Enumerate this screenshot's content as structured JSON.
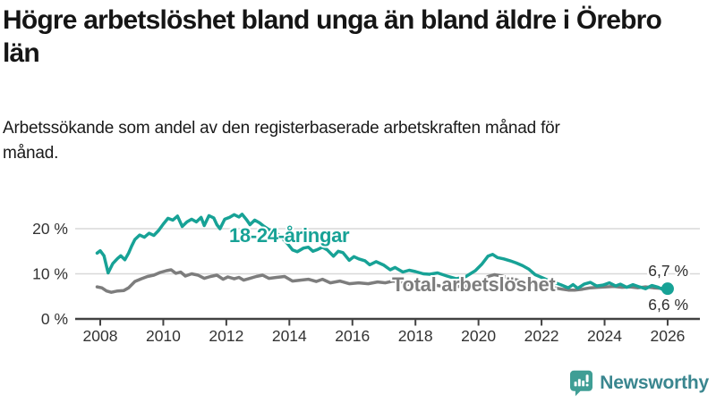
{
  "title": "Högre arbetslöshet bland unga än bland äldre i Örebro län",
  "subtitle": "Arbetssökande som andel av den registerbaserade arbetskraften månad för månad.",
  "logo": {
    "name": "Newsworthy",
    "icon": "newsworthy-speech-bubble-bar-chart-icon",
    "icon_color": "#3f9e95",
    "text_color": "#3a868f"
  },
  "colors": {
    "youth_line": "#17a296",
    "total_line": "#7d7d7d",
    "gridline": "#d8d8d8",
    "axis": "#424242",
    "tick_label": "#333333",
    "end_label": "#2e2e2e"
  },
  "chart_data": {
    "type": "line",
    "x_axis": {
      "unit": "year",
      "tick_values": [
        2008,
        2010,
        2012,
        2014,
        2016,
        2018,
        2020,
        2022,
        2024,
        2026
      ],
      "tick_labels": [
        "2008",
        "2010",
        "2012",
        "2014",
        "2016",
        "2018",
        "2020",
        "2022",
        "2024",
        "2026"
      ],
      "range": [
        2007.2,
        2027.0
      ]
    },
    "y_axis": {
      "tick_values": [
        0,
        10,
        20
      ],
      "tick_labels": [
        "0 %",
        "10 %",
        "20 %"
      ],
      "range": [
        0,
        25
      ],
      "grid": "horizontal"
    },
    "legend_position": "inline-labels",
    "series": [
      {
        "name": "18-24-åringar",
        "color": "#17a296",
        "end_value_label": "6,7 %",
        "end_dot": true,
        "points": [
          [
            2007.9,
            14.6
          ],
          [
            2008.0,
            15.1
          ],
          [
            2008.12,
            14.0
          ],
          [
            2008.25,
            10.2
          ],
          [
            2008.4,
            12.3
          ],
          [
            2008.55,
            13.4
          ],
          [
            2008.65,
            14.0
          ],
          [
            2008.78,
            13.1
          ],
          [
            2008.9,
            14.6
          ],
          [
            2009.0,
            16.2
          ],
          [
            2009.1,
            17.6
          ],
          [
            2009.25,
            18.6
          ],
          [
            2009.4,
            18.1
          ],
          [
            2009.55,
            19.0
          ],
          [
            2009.7,
            18.5
          ],
          [
            2009.85,
            19.6
          ],
          [
            2010.0,
            21.0
          ],
          [
            2010.15,
            22.3
          ],
          [
            2010.3,
            21.9
          ],
          [
            2010.45,
            22.8
          ],
          [
            2010.6,
            20.5
          ],
          [
            2010.75,
            21.5
          ],
          [
            2010.9,
            22.1
          ],
          [
            2011.05,
            21.5
          ],
          [
            2011.2,
            22.5
          ],
          [
            2011.3,
            20.7
          ],
          [
            2011.45,
            22.9
          ],
          [
            2011.6,
            22.4
          ],
          [
            2011.7,
            20.9
          ],
          [
            2011.8,
            20.0
          ],
          [
            2011.95,
            22.1
          ],
          [
            2012.1,
            22.5
          ],
          [
            2012.25,
            23.1
          ],
          [
            2012.4,
            22.6
          ],
          [
            2012.5,
            23.2
          ],
          [
            2012.65,
            21.9
          ],
          [
            2012.75,
            20.9
          ],
          [
            2012.9,
            21.9
          ],
          [
            2013.05,
            21.3
          ],
          [
            2013.2,
            20.5
          ],
          [
            2013.35,
            19.8
          ],
          [
            2013.5,
            19.5
          ],
          [
            2013.65,
            18.7
          ],
          [
            2013.8,
            17.7
          ],
          [
            2013.95,
            16.6
          ],
          [
            2014.1,
            15.3
          ],
          [
            2014.25,
            14.9
          ],
          [
            2014.45,
            15.7
          ],
          [
            2014.6,
            15.9
          ],
          [
            2014.75,
            15.0
          ],
          [
            2014.9,
            15.4
          ],
          [
            2015.05,
            15.9
          ],
          [
            2015.2,
            15.3
          ],
          [
            2015.4,
            13.9
          ],
          [
            2015.55,
            15.0
          ],
          [
            2015.7,
            14.7
          ],
          [
            2015.9,
            13.0
          ],
          [
            2016.05,
            13.8
          ],
          [
            2016.2,
            13.3
          ],
          [
            2016.4,
            12.9
          ],
          [
            2016.55,
            12.0
          ],
          [
            2016.75,
            12.7
          ],
          [
            2017.0,
            11.9
          ],
          [
            2017.2,
            10.9
          ],
          [
            2017.35,
            11.4
          ],
          [
            2017.6,
            10.4
          ],
          [
            2017.8,
            10.8
          ],
          [
            2018.0,
            10.5
          ],
          [
            2018.25,
            10.0
          ],
          [
            2018.45,
            9.9
          ],
          [
            2018.7,
            10.2
          ],
          [
            2019.0,
            9.5
          ],
          [
            2019.3,
            8.9
          ],
          [
            2019.6,
            9.4
          ],
          [
            2019.9,
            10.7
          ],
          [
            2020.1,
            12.1
          ],
          [
            2020.3,
            13.9
          ],
          [
            2020.45,
            14.3
          ],
          [
            2020.6,
            13.6
          ],
          [
            2020.8,
            13.3
          ],
          [
            2021.0,
            12.9
          ],
          [
            2021.2,
            12.4
          ],
          [
            2021.4,
            11.8
          ],
          [
            2021.6,
            11.0
          ],
          [
            2021.8,
            9.8
          ],
          [
            2022.0,
            9.2
          ],
          [
            2022.2,
            8.6
          ],
          [
            2022.4,
            8.1
          ],
          [
            2022.6,
            7.6
          ],
          [
            2022.85,
            6.9
          ],
          [
            2023.0,
            7.6
          ],
          [
            2023.15,
            6.8
          ],
          [
            2023.35,
            7.7
          ],
          [
            2023.55,
            8.1
          ],
          [
            2023.75,
            7.3
          ],
          [
            2023.95,
            7.5
          ],
          [
            2024.15,
            8.0
          ],
          [
            2024.35,
            7.3
          ],
          [
            2024.5,
            7.7
          ],
          [
            2024.7,
            7.0
          ],
          [
            2024.9,
            7.6
          ],
          [
            2025.1,
            7.1
          ],
          [
            2025.3,
            6.7
          ],
          [
            2025.5,
            7.4
          ],
          [
            2025.7,
            7.0
          ],
          [
            2025.85,
            6.5
          ],
          [
            2026.0,
            6.7
          ]
        ]
      },
      {
        "name": "Total arbetslöshet",
        "color": "#7d7d7d",
        "end_value_label": "6,6 %",
        "end_dot": false,
        "points": [
          [
            2007.9,
            7.1
          ],
          [
            2008.05,
            6.9
          ],
          [
            2008.2,
            6.2
          ],
          [
            2008.35,
            5.9
          ],
          [
            2008.55,
            6.2
          ],
          [
            2008.75,
            6.3
          ],
          [
            2008.9,
            6.9
          ],
          [
            2009.1,
            8.3
          ],
          [
            2009.3,
            8.9
          ],
          [
            2009.5,
            9.4
          ],
          [
            2009.7,
            9.7
          ],
          [
            2009.9,
            10.3
          ],
          [
            2010.1,
            10.7
          ],
          [
            2010.25,
            10.9
          ],
          [
            2010.4,
            10.1
          ],
          [
            2010.55,
            10.4
          ],
          [
            2010.7,
            9.5
          ],
          [
            2010.9,
            10.0
          ],
          [
            2011.1,
            9.7
          ],
          [
            2011.3,
            9.0
          ],
          [
            2011.5,
            9.4
          ],
          [
            2011.7,
            9.7
          ],
          [
            2011.9,
            8.8
          ],
          [
            2012.05,
            9.3
          ],
          [
            2012.25,
            8.9
          ],
          [
            2012.4,
            9.2
          ],
          [
            2012.55,
            8.6
          ],
          [
            2012.75,
            9.0
          ],
          [
            2012.95,
            9.4
          ],
          [
            2013.15,
            9.7
          ],
          [
            2013.35,
            9.0
          ],
          [
            2013.6,
            9.2
          ],
          [
            2013.85,
            9.4
          ],
          [
            2014.1,
            8.4
          ],
          [
            2014.35,
            8.6
          ],
          [
            2014.6,
            8.8
          ],
          [
            2014.85,
            8.3
          ],
          [
            2015.05,
            8.8
          ],
          [
            2015.3,
            8.0
          ],
          [
            2015.6,
            8.4
          ],
          [
            2015.9,
            7.8
          ],
          [
            2016.2,
            8.0
          ],
          [
            2016.5,
            7.8
          ],
          [
            2016.8,
            8.2
          ],
          [
            2017.05,
            8.0
          ],
          [
            2017.3,
            8.4
          ],
          [
            2017.6,
            8.1
          ],
          [
            2017.9,
            7.4
          ],
          [
            2018.2,
            7.8
          ],
          [
            2018.5,
            7.6
          ],
          [
            2018.8,
            7.3
          ],
          [
            2019.1,
            7.1
          ],
          [
            2019.4,
            7.2
          ],
          [
            2019.7,
            7.4
          ],
          [
            2020.0,
            7.9
          ],
          [
            2020.3,
            9.4
          ],
          [
            2020.5,
            9.8
          ],
          [
            2020.75,
            9.5
          ],
          [
            2021.0,
            9.0
          ],
          [
            2021.3,
            8.5
          ],
          [
            2021.6,
            8.0
          ],
          [
            2021.9,
            7.6
          ],
          [
            2022.15,
            7.2
          ],
          [
            2022.4,
            6.9
          ],
          [
            2022.65,
            6.6
          ],
          [
            2022.85,
            6.4
          ],
          [
            2023.05,
            6.4
          ],
          [
            2023.3,
            6.6
          ],
          [
            2023.55,
            6.9
          ],
          [
            2023.8,
            7.0
          ],
          [
            2024.05,
            7.1
          ],
          [
            2024.3,
            7.2
          ],
          [
            2024.55,
            7.0
          ],
          [
            2024.8,
            7.1
          ],
          [
            2025.05,
            6.9
          ],
          [
            2025.3,
            7.1
          ],
          [
            2025.55,
            6.9
          ],
          [
            2025.8,
            6.8
          ],
          [
            2026.0,
            6.6
          ]
        ]
      }
    ]
  }
}
